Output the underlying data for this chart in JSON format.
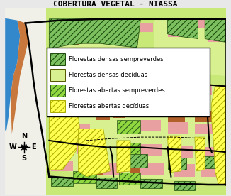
{
  "title": "COBERTURA VEGETAL - NIASSA",
  "title_fontsize": 8,
  "legend_items": [
    {
      "label": "Florestas densas sempreverdes",
      "facecolor": "#7dc060",
      "hatch": "////",
      "edgecolor": "#2d5a1a"
    },
    {
      "label": "Florestas densas decíduas",
      "facecolor": "#c8e870",
      "hatch": "",
      "edgecolor": "#555500"
    },
    {
      "label": "Florestas abertas sempreverdes",
      "facecolor": "#90d840",
      "hatch": "////",
      "edgecolor": "#2d5a1a"
    },
    {
      "label": "Florestas abertas decíduas",
      "facecolor": "#ffff00",
      "hatch": "////",
      "edgecolor": "#aaaa00"
    }
  ],
  "bg_light_green": "#c8e878",
  "bg_pale_green": "#d8f090",
  "pink_color": "#e8a0a0",
  "orange_color": "#c8783c",
  "dark_orange": "#b06028",
  "water_color": "#3388cc",
  "yellow_hatch_fc": "#ffff50",
  "yellow_hatch_ec": "#aaaa00",
  "dense_green_fc": "#7dc060",
  "dense_green_ec": "#1a4a0a",
  "open_green_fc": "#90d840",
  "open_green_ec": "#2d5a1a",
  "figsize": [
    3.26,
    2.76
  ],
  "dpi": 100
}
